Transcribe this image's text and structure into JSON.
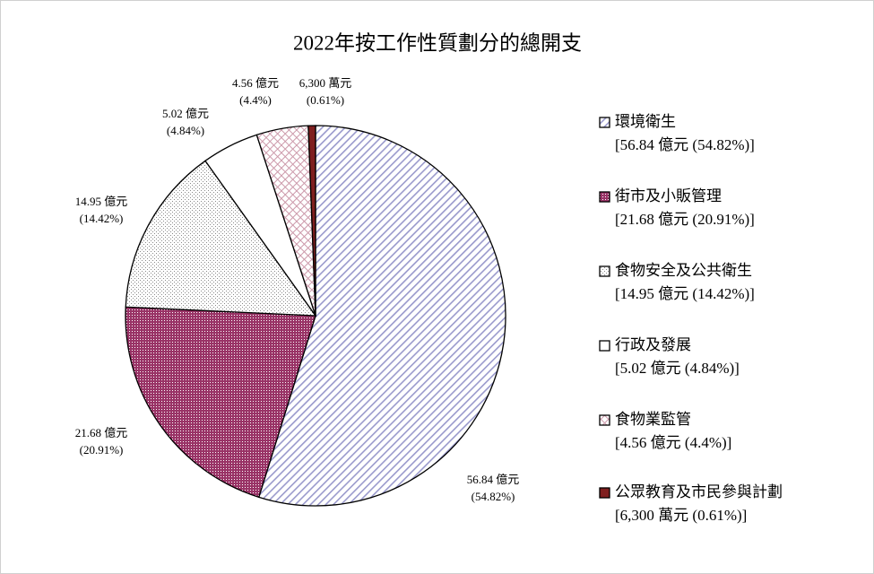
{
  "chart_data": {
    "type": "pie",
    "title": "2022年按工作性質劃分的總開支",
    "categories": [
      "環境衛生",
      "街市及小販管理",
      "食物安全及公共衛生",
      "行政及發展",
      "食物業監管",
      "公眾教育及市民參與計劃"
    ],
    "values": [
      54.82,
      20.91,
      14.42,
      4.84,
      4.4,
      0.61
    ],
    "value_labels": [
      "(54.82%)",
      "(20.91%)",
      "(14.42%)",
      "(4.84%)",
      "(4.4%)",
      "(0.61%)"
    ],
    "amount_labels": [
      "56.84 億元",
      "21.68 億元",
      "14.95 億元",
      "5.02 億元",
      "4.56 億元",
      "6,300 萬元"
    ],
    "legend_labels": [
      "[56.84 億元 (54.82%)]",
      "[21.68 億元 (20.91%)]",
      "[14.95 億元 (14.42%)]",
      "[5.02 億元 (4.84%)]",
      "[4.56 億元 (4.4%)]",
      "[6,300 萬元 (0.61%)]"
    ],
    "colors": [
      "#9999cc",
      "#993366",
      "#888888",
      "#ffffff",
      "#cc99aa",
      "#7f1f1f"
    ],
    "patterns": [
      "diagonal",
      "dense",
      "dots",
      "none",
      "cross",
      "solid"
    ],
    "legend": "right"
  }
}
